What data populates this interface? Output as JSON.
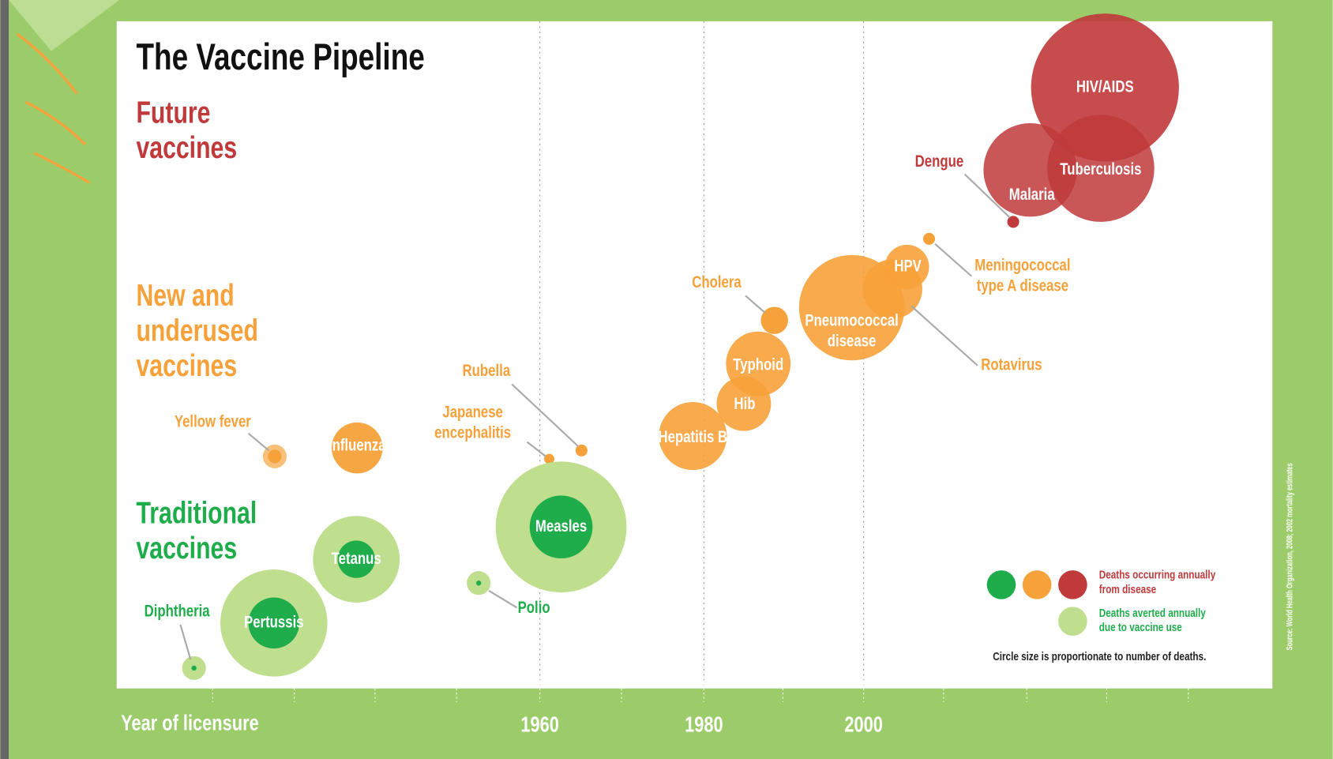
{
  "title": "The Vaccine Pipeline",
  "sections": [
    {
      "lines": [
        "Future",
        "vaccines"
      ]
    },
    {
      "lines": [
        "New and",
        "underused",
        "vaccines"
      ]
    },
    {
      "lines": [
        "Traditional",
        "vaccines"
      ]
    }
  ],
  "vaccines": [
    {
      "lines": [
        "HIV/AIDS"
      ]
    },
    {
      "lines": [
        "Tuberculosis"
      ]
    },
    {
      "lines": [
        "Malaria"
      ]
    },
    {
      "lines": [
        "Dengue"
      ]
    },
    {
      "lines": [
        "Meningococcal",
        "type A disease"
      ]
    },
    {
      "lines": [
        "HPV"
      ]
    },
    {
      "lines": [
        "Rotavirus"
      ]
    },
    {
      "lines": [
        "Pneumococcal",
        "disease"
      ]
    },
    {
      "lines": [
        "Cholera"
      ]
    },
    {
      "lines": [
        "Typhoid"
      ]
    },
    {
      "lines": [
        "Hib"
      ]
    },
    {
      "lines": [
        "Hepatitis B"
      ]
    },
    {
      "lines": [
        "Rubella"
      ]
    },
    {
      "lines": [
        "Japanese",
        "encephalitis"
      ]
    },
    {
      "lines": [
        "Influenza"
      ]
    },
    {
      "lines": [
        "Yellow fever"
      ]
    },
    {
      "lines": [
        "Measles"
      ]
    },
    {
      "lines": [
        "Tetanus"
      ]
    },
    {
      "lines": [
        "Pertussis"
      ]
    },
    {
      "lines": [
        "Polio"
      ]
    },
    {
      "lines": [
        "Diphtheria"
      ]
    }
  ],
  "legend": {
    "occurring": [
      "Deaths occurring annually",
      "from disease"
    ],
    "averted": [
      "Deaths averted annually",
      "due to vaccine use"
    ],
    "note": "Circle size is proportionate to number of deaths."
  },
  "axis": {
    "label": "Year of licensure",
    "years": [
      "1960",
      "1980",
      "2000"
    ]
  },
  "source": "Source: World Health Organization, 2008; 2002 mortality estimates"
}
